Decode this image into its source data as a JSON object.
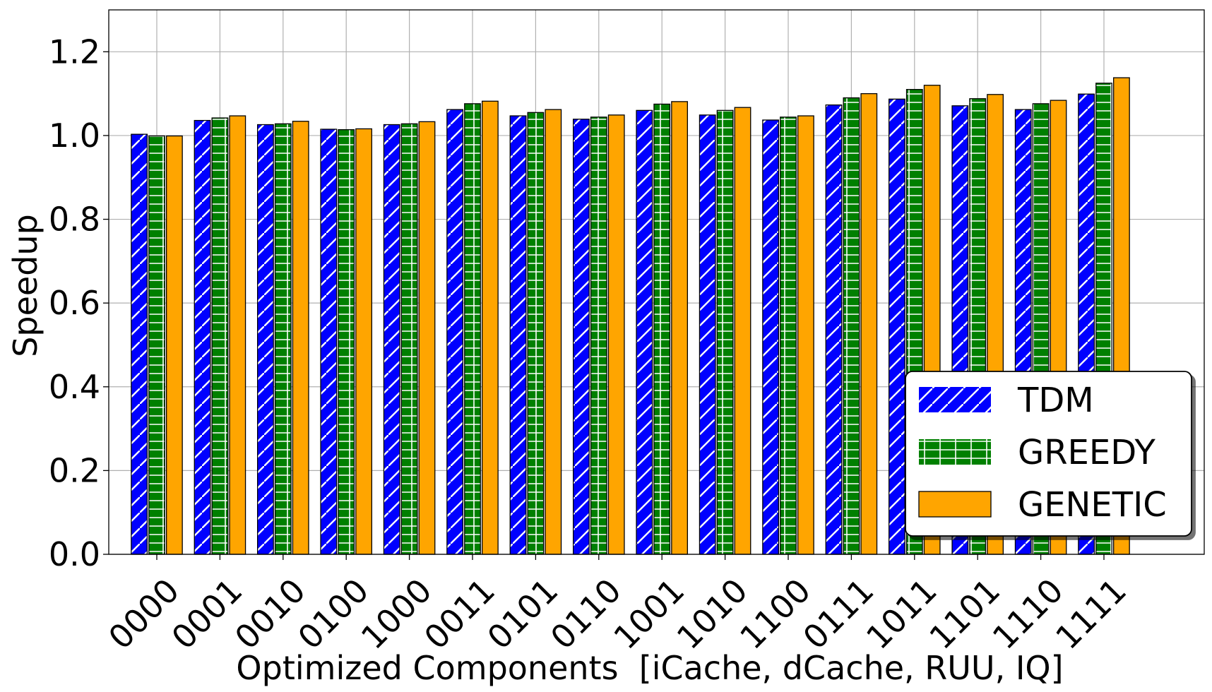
{
  "chart_data": {
    "type": "bar",
    "title": "",
    "xlabel": "Optimized Components  [iCache, dCache, RUU, IQ]",
    "ylabel": "Speedup",
    "ylim": [
      0,
      1.3
    ],
    "yticks": [
      0.0,
      0.2,
      0.4,
      0.6,
      0.8,
      1.0,
      1.2
    ],
    "ytick_labels": [
      "0.0",
      "0.2",
      "0.4",
      "0.6",
      "0.8",
      "1.0",
      "1.2"
    ],
    "grid": true,
    "legend_position": "bottom-right",
    "categories": [
      "0000",
      "0001",
      "0010",
      "0100",
      "1000",
      "0011",
      "0101",
      "0110",
      "1001",
      "1010",
      "1100",
      "0111",
      "1011",
      "1101",
      "1110",
      "1111"
    ],
    "series": [
      {
        "name": "TDM",
        "color": "#0000ff",
        "hatch": "diagonal",
        "values": [
          1.003,
          1.036,
          1.026,
          1.015,
          1.026,
          1.062,
          1.047,
          1.039,
          1.06,
          1.049,
          1.037,
          1.073,
          1.087,
          1.071,
          1.062,
          1.099
        ]
      },
      {
        "name": "GREEDY",
        "color": "#008000",
        "hatch": "grid",
        "values": [
          0.999,
          1.042,
          1.028,
          1.014,
          1.028,
          1.076,
          1.055,
          1.044,
          1.075,
          1.06,
          1.044,
          1.09,
          1.11,
          1.088,
          1.076,
          1.125
        ]
      },
      {
        "name": "GENETIC",
        "color": "#ffa500",
        "hatch": "none",
        "values": [
          0.999,
          1.047,
          1.034,
          1.016,
          1.033,
          1.082,
          1.062,
          1.049,
          1.081,
          1.067,
          1.047,
          1.1,
          1.12,
          1.098,
          1.084,
          1.138
        ]
      }
    ]
  }
}
